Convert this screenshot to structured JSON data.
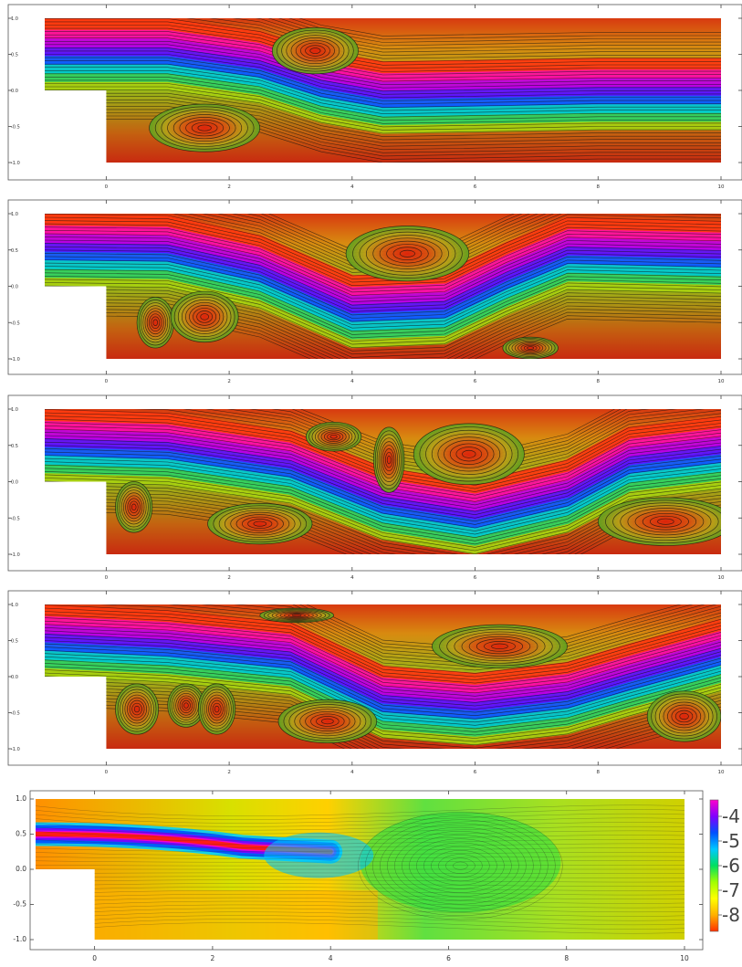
{
  "chart_data": [
    {
      "type": "streamplot",
      "panel": 1,
      "x_ticks": [
        "0",
        "2",
        "4",
        "6",
        "8",
        "10"
      ],
      "y_ticks": [
        "1.0",
        "0.5",
        "0.0",
        "-0.5",
        "-1.0"
      ],
      "xlim": [
        -1,
        10
      ],
      "ylim": [
        -1,
        1
      ],
      "step": {
        "x": 0,
        "y": 0
      },
      "vortices": [
        {
          "x": 1.6,
          "y": -0.52,
          "rx": 0.9,
          "ry": 0.33
        },
        {
          "x": 3.4,
          "y": 0.55,
          "rx": 0.7,
          "ry": 0.32
        }
      ],
      "jet": [
        [
          -1,
          0.5
        ],
        [
          1,
          0.5
        ],
        [
          2.5,
          0.32
        ],
        [
          3.5,
          0.05
        ],
        [
          4.5,
          -0.1
        ],
        [
          6,
          -0.08
        ],
        [
          8,
          -0.05
        ],
        [
          10,
          -0.05
        ]
      ]
    },
    {
      "type": "streamplot",
      "panel": 2,
      "x_ticks": [
        "0",
        "2",
        "4",
        "6",
        "8",
        "10"
      ],
      "y_ticks": [
        "1.0",
        "0.5",
        "0.0",
        "-0.5",
        "-1.0"
      ],
      "xlim": [
        -1,
        10
      ],
      "ylim": [
        -1,
        1
      ],
      "vortices": [
        {
          "x": 0.8,
          "y": -0.5,
          "rx": 0.3,
          "ry": 0.35
        },
        {
          "x": 1.6,
          "y": -0.42,
          "rx": 0.55,
          "ry": 0.35
        },
        {
          "x": 4.9,
          "y": 0.45,
          "rx": 1.0,
          "ry": 0.38
        },
        {
          "x": 6.9,
          "y": -0.85,
          "rx": 0.45,
          "ry": 0.15
        }
      ],
      "jet": [
        [
          -1,
          0.5
        ],
        [
          1,
          0.48
        ],
        [
          2.5,
          0.2
        ],
        [
          4,
          -0.35
        ],
        [
          5.5,
          -0.3
        ],
        [
          6.5,
          0.1
        ],
        [
          7.5,
          0.45
        ],
        [
          10,
          0.4
        ]
      ]
    },
    {
      "type": "streamplot",
      "panel": 3,
      "x_ticks": [
        "0",
        "2",
        "4",
        "6",
        "8",
        "10"
      ],
      "y_ticks": [
        "1.0",
        "0.5",
        "0.0",
        "-0.5",
        "-1.0"
      ],
      "xlim": [
        -1,
        10
      ],
      "ylim": [
        -1,
        1
      ],
      "vortices": [
        {
          "x": 0.45,
          "y": -0.35,
          "rx": 0.3,
          "ry": 0.35
        },
        {
          "x": 2.5,
          "y": -0.58,
          "rx": 0.85,
          "ry": 0.28
        },
        {
          "x": 3.7,
          "y": 0.62,
          "rx": 0.45,
          "ry": 0.2
        },
        {
          "x": 4.6,
          "y": 0.3,
          "rx": 0.25,
          "ry": 0.45
        },
        {
          "x": 5.9,
          "y": 0.38,
          "rx": 0.9,
          "ry": 0.42
        },
        {
          "x": 9.1,
          "y": -0.55,
          "rx": 1.1,
          "ry": 0.33
        }
      ],
      "jet": [
        [
          -1,
          0.5
        ],
        [
          1,
          0.45
        ],
        [
          3,
          0.2
        ],
        [
          4.5,
          -0.3
        ],
        [
          6,
          -0.5
        ],
        [
          7.5,
          -0.2
        ],
        [
          8.5,
          0.25
        ],
        [
          10,
          0.4
        ]
      ]
    },
    {
      "type": "streamplot",
      "panel": 4,
      "x_ticks": [
        "0",
        "2",
        "4",
        "6",
        "8",
        "10"
      ],
      "y_ticks": [
        "1.0",
        "0.5",
        "0.0",
        "-0.5",
        "-1.0"
      ],
      "xlim": [
        -1,
        10
      ],
      "ylim": [
        -1,
        1
      ],
      "vortices": [
        {
          "x": 0.5,
          "y": -0.45,
          "rx": 0.35,
          "ry": 0.35
        },
        {
          "x": 1.3,
          "y": -0.4,
          "rx": 0.3,
          "ry": 0.3
        },
        {
          "x": 1.8,
          "y": -0.45,
          "rx": 0.3,
          "ry": 0.35
        },
        {
          "x": 3.1,
          "y": 0.85,
          "rx": 0.6,
          "ry": 0.1
        },
        {
          "x": 3.6,
          "y": -0.62,
          "rx": 0.8,
          "ry": 0.3
        },
        {
          "x": 6.4,
          "y": 0.42,
          "rx": 1.1,
          "ry": 0.3
        },
        {
          "x": 9.4,
          "y": -0.55,
          "rx": 0.6,
          "ry": 0.35
        }
      ],
      "jet": [
        [
          -1,
          0.5
        ],
        [
          1,
          0.42
        ],
        [
          3,
          0.25
        ],
        [
          4.5,
          -0.35
        ],
        [
          6,
          -0.45
        ],
        [
          7.5,
          -0.3
        ],
        [
          8.5,
          -0.05
        ],
        [
          10,
          0.3
        ]
      ]
    },
    {
      "type": "contour",
      "panel": 5,
      "x_ticks": [
        "0",
        "2",
        "4",
        "6",
        "8",
        "10"
      ],
      "y_ticks": [
        "1.0",
        "0.5",
        "0.0",
        "-0.5",
        "-1.0"
      ],
      "xlim": [
        -1,
        10
      ],
      "ylim": [
        -1,
        1
      ],
      "colorbar_labels": [
        "-4",
        "-5",
        "-6",
        "-7",
        "-8"
      ],
      "colorbar_colors": [
        "#ff00cc",
        "#8000ff",
        "#0050ff",
        "#00c8ff",
        "#00e060",
        "#a0ff00",
        "#ffff00",
        "#ffb000",
        "#ff3000"
      ],
      "colorbar_values": [
        -3.8,
        -4.4,
        -5.0,
        -5.6,
        -6.2,
        -6.8,
        -7.4,
        -8.0,
        -8.6
      ]
    }
  ]
}
